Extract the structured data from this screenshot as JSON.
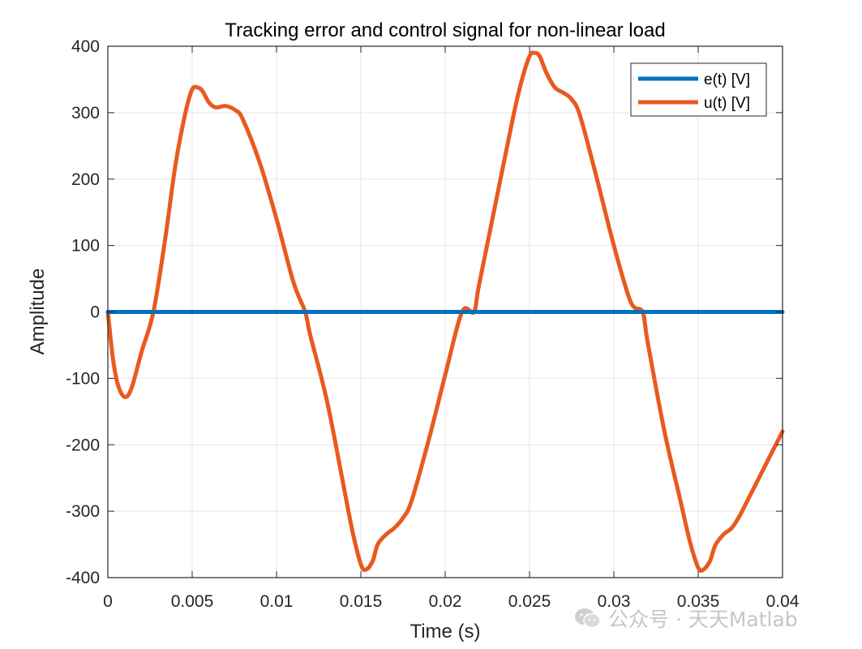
{
  "chart_data": {
    "type": "line",
    "title": "Tracking error and control signal for non-linear load",
    "xlabel": "Time (s)",
    "ylabel": "Amplitude",
    "xlim": [
      0,
      0.04
    ],
    "ylim": [
      -400,
      400
    ],
    "x_ticks": [
      0,
      0.005,
      0.01,
      0.015,
      0.02,
      0.025,
      0.03,
      0.035,
      0.04
    ],
    "x_tick_labels": [
      "0",
      "0.005",
      "0.01",
      "0.015",
      "0.02",
      "0.025",
      "0.03",
      "0.035",
      "0.04"
    ],
    "y_ticks": [
      -400,
      -300,
      -200,
      -100,
      0,
      100,
      200,
      300,
      400
    ],
    "y_tick_labels": [
      "-400",
      "-300",
      "-200",
      "-100",
      "0",
      "100",
      "200",
      "300",
      "400"
    ],
    "grid": true,
    "legend_position": "top-right",
    "series": [
      {
        "name": "e(t) [V]",
        "color": "#0072BD",
        "x": [
          0,
          0.04
        ],
        "y": [
          0,
          0
        ]
      },
      {
        "name": "u(t) [V]",
        "color": "#E85A1E",
        "x": [
          0,
          0.0003,
          0.0006,
          0.001,
          0.0014,
          0.002,
          0.0027,
          0.0034,
          0.004,
          0.0046,
          0.005,
          0.0053,
          0.0056,
          0.006,
          0.0064,
          0.007,
          0.0076,
          0.008,
          0.009,
          0.01,
          0.011,
          0.0117,
          0.012,
          0.013,
          0.014,
          0.0145,
          0.015,
          0.0153,
          0.0157,
          0.016,
          0.0165,
          0.017,
          0.0175,
          0.018,
          0.019,
          0.02,
          0.021,
          0.0217,
          0.022,
          0.023,
          0.024,
          0.0245,
          0.025,
          0.0253,
          0.0256,
          0.026,
          0.0265,
          0.027,
          0.0275,
          0.028,
          0.029,
          0.03,
          0.031,
          0.0317,
          0.032,
          0.033,
          0.034,
          0.0345,
          0.035,
          0.0353,
          0.0357,
          0.036,
          0.0365,
          0.037,
          0.0375,
          0.038,
          0.039,
          0.04
        ],
        "y": [
          0,
          -70,
          -110,
          -128,
          -115,
          -60,
          0,
          110,
          220,
          300,
          335,
          338,
          333,
          315,
          308,
          310,
          303,
          290,
          225,
          140,
          45,
          0,
          -35,
          -135,
          -265,
          -330,
          -380,
          -388,
          -375,
          -350,
          -335,
          -325,
          -310,
          -285,
          -195,
          -95,
          0,
          0,
          40,
          165,
          290,
          345,
          385,
          390,
          385,
          360,
          338,
          330,
          320,
          295,
          200,
          100,
          15,
          0,
          -45,
          -180,
          -290,
          -345,
          -385,
          -388,
          -375,
          -352,
          -335,
          -325,
          -305,
          -280,
          -230,
          -180
        ]
      }
    ]
  },
  "watermark": {
    "text": "公众号 · 天天Matlab"
  }
}
